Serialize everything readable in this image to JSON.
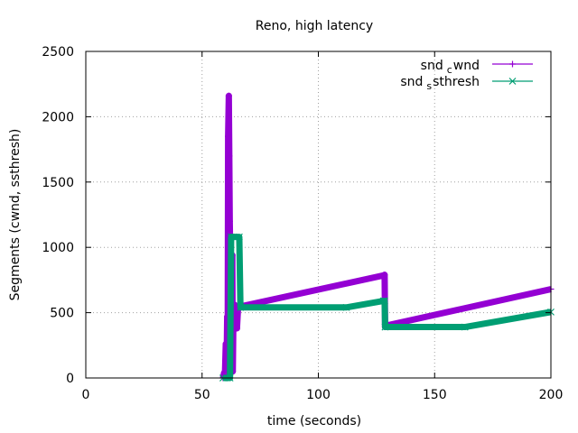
{
  "chart_data": {
    "type": "line",
    "title": "Reno, high latency",
    "xlabel": "time (seconds)",
    "ylabel": "Segments (cwnd, ssthresh)",
    "xlim": [
      0,
      200
    ],
    "ylim": [
      0,
      2500
    ],
    "x_ticks": [
      "0",
      "50",
      "100",
      "150",
      "200"
    ],
    "y_ticks": [
      "0",
      "500",
      "1000",
      "1500",
      "2000",
      "2500"
    ],
    "grid": true,
    "legend_position": "top-right",
    "series": [
      {
        "name": "snd_cwnd",
        "legend_main": "snd",
        "legend_sub": "c",
        "legend_rest": "wnd",
        "color": "#9400d3",
        "marker": "plus",
        "points": [
          [
            59.0,
            0
          ],
          [
            59.5,
            40
          ],
          [
            59.8,
            5
          ],
          [
            60.2,
            260
          ],
          [
            60.5,
            20
          ],
          [
            60.8,
            470
          ],
          [
            61.0,
            50
          ],
          [
            61.2,
            1850
          ],
          [
            61.5,
            2160
          ],
          [
            61.7,
            1700
          ],
          [
            61.9,
            1200
          ],
          [
            62.1,
            950
          ],
          [
            62.3,
            600
          ],
          [
            62.5,
            900
          ],
          [
            62.8,
            300
          ],
          [
            63.0,
            940
          ],
          [
            63.2,
            50
          ],
          [
            63.5,
            500
          ],
          [
            64.0,
            560
          ],
          [
            64.5,
            400
          ],
          [
            65.0,
            380
          ],
          [
            65.5,
            550
          ],
          [
            66.0,
            545
          ],
          [
            128.0,
            785
          ],
          [
            128.5,
            790
          ],
          [
            128.7,
            390
          ],
          [
            129.0,
            400
          ],
          [
            200.0,
            680
          ]
        ]
      },
      {
        "name": "snd_ssthresh",
        "legend_main": "snd",
        "legend_sub": "s",
        "legend_rest": "sthresh",
        "color": "#009e73",
        "marker": "cross",
        "points": [
          [
            59.0,
            0
          ],
          [
            62.0,
            0
          ],
          [
            62.5,
            1080
          ],
          [
            66.0,
            1080
          ],
          [
            66.5,
            540
          ],
          [
            112.0,
            540
          ],
          [
            128.0,
            590
          ],
          [
            128.5,
            590
          ],
          [
            128.7,
            390
          ],
          [
            163.0,
            390
          ],
          [
            200.0,
            505
          ]
        ]
      }
    ]
  }
}
